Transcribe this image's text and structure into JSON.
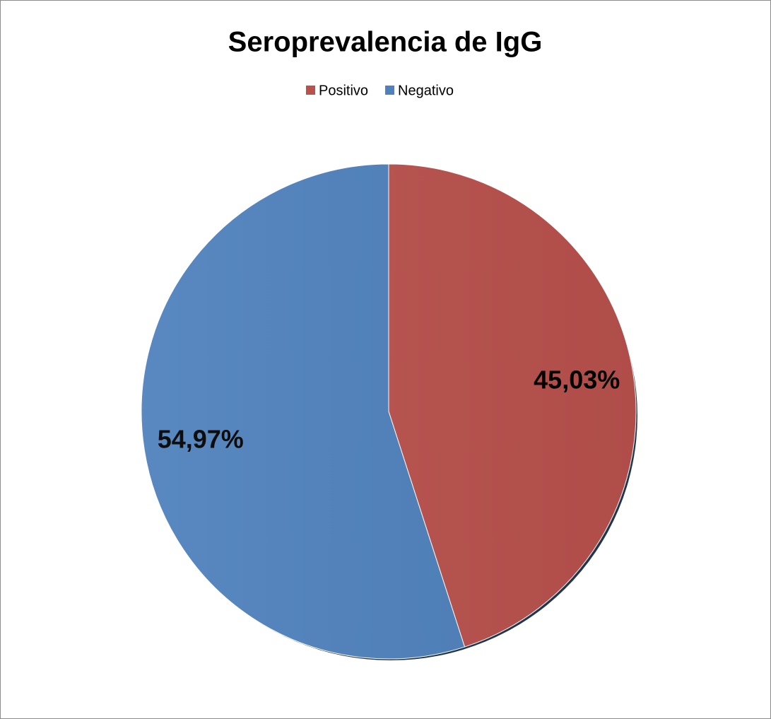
{
  "chart_data": {
    "type": "pie",
    "title": "Seroprevalencia de IgG",
    "categories": [
      "Positivo",
      "Negativo"
    ],
    "values": [
      45.03,
      54.97
    ],
    "value_labels": [
      "45,03%",
      "54,97%"
    ],
    "colors": [
      "#b9514d",
      "#4f81bd"
    ]
  }
}
